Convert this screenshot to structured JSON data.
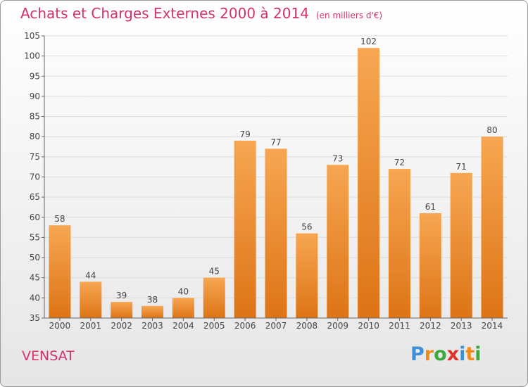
{
  "title": "Achats et Charges Externes 2000 à 2014",
  "unit": "(en milliers d'€)",
  "commune": "VENSAT",
  "logo": {
    "letters": [
      "P",
      "r",
      "o",
      "x",
      "i",
      "t",
      "i"
    ],
    "colors": [
      "#3e8fd6",
      "#f08a1c",
      "#3ea83e",
      "#e0312a",
      "#3e8fd6",
      "#f08a1c",
      "#3ea83e"
    ]
  },
  "colors": {
    "bar_top": "#f7a652",
    "bar_bottom": "#dd7416",
    "text": "#d4306d",
    "grid": "#dcdcdc"
  },
  "chart_data": {
    "type": "bar",
    "categories": [
      "2000",
      "2001",
      "2002",
      "2003",
      "2004",
      "2005",
      "2006",
      "2007",
      "2008",
      "2009",
      "2010",
      "2011",
      "2012",
      "2013",
      "2014"
    ],
    "values": [
      58,
      44,
      39,
      38,
      40,
      45,
      79,
      77,
      56,
      73,
      102,
      72,
      61,
      71,
      80
    ],
    "ylim": [
      35,
      105
    ],
    "yticks": [
      35,
      40,
      45,
      50,
      55,
      60,
      65,
      70,
      75,
      80,
      85,
      90,
      95,
      100,
      105
    ],
    "title": "Achats et Charges Externes 2000 à 2014",
    "xlabel": "",
    "ylabel": "",
    "grid": true
  }
}
